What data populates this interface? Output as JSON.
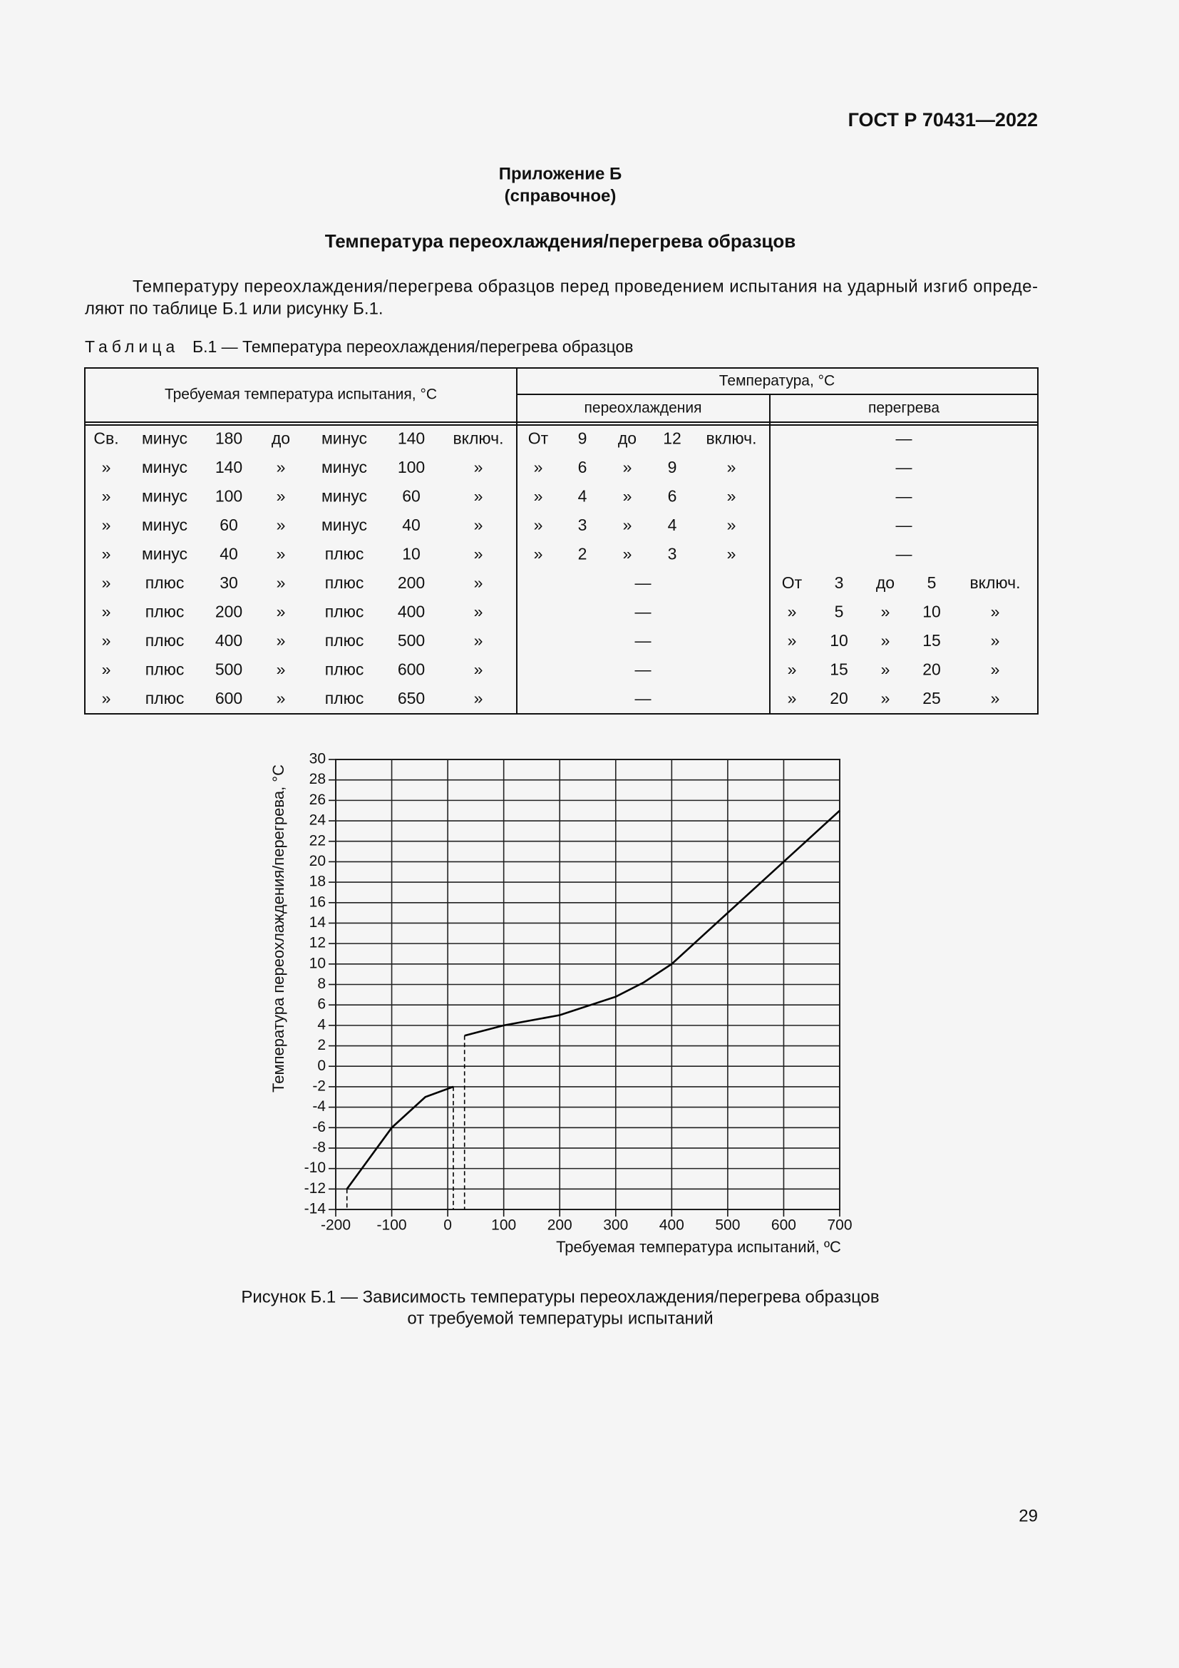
{
  "header": {
    "code": "ГОСТ Р 70431—2022"
  },
  "appendix": {
    "title": "Приложение Б",
    "subtitle": "(справочное)"
  },
  "section_title": "Температура переохлаждения/перегрева образцов",
  "paragraph": [
    "Температуру переохлаждения/перегрева образцов перед проведением испытания на ударный изгиб опреде-",
    "ляют по таблице Б.1 или рисунку Б.1."
  ],
  "table": {
    "caption_label": "Таблица",
    "caption": "Б.1 — Температура переохлаждения/перегрева образцов",
    "header": {
      "required": "Требуемая температура испытания, °С",
      "temperature": "Температура, °С",
      "subcooling": "переохлаждения",
      "overheating": "перегрева"
    },
    "rows": [
      {
        "req": [
          "Св.",
          "минус",
          "180",
          "до",
          "минус",
          "140",
          "включ."
        ],
        "sub": [
          "От",
          "9",
          "до",
          "12",
          "включ."
        ],
        "over": [
          "—"
        ]
      },
      {
        "req": [
          "»",
          "минус",
          "140",
          "»",
          "минус",
          "100",
          "»"
        ],
        "sub": [
          "»",
          "6",
          "»",
          "9",
          "»"
        ],
        "over": [
          "—"
        ]
      },
      {
        "req": [
          "»",
          "минус",
          "100",
          "»",
          "минус",
          "60",
          "»"
        ],
        "sub": [
          "»",
          "4",
          "»",
          "6",
          "»"
        ],
        "over": [
          "—"
        ]
      },
      {
        "req": [
          "»",
          "минус",
          "60",
          "»",
          "минус",
          "40",
          "»"
        ],
        "sub": [
          "»",
          "3",
          "»",
          "4",
          "»"
        ],
        "over": [
          "—"
        ]
      },
      {
        "req": [
          "»",
          "минус",
          "40",
          "»",
          "плюс",
          "10",
          "»"
        ],
        "sub": [
          "»",
          "2",
          "»",
          "3",
          "»"
        ],
        "over": [
          "—"
        ]
      },
      {
        "req": [
          "»",
          "плюс",
          "30",
          "»",
          "плюс",
          "200",
          "»"
        ],
        "sub": [
          "—"
        ],
        "over": [
          "От",
          "3",
          "до",
          "5",
          "включ."
        ]
      },
      {
        "req": [
          "»",
          "плюс",
          "200",
          "»",
          "плюс",
          "400",
          "»"
        ],
        "sub": [
          "—"
        ],
        "over": [
          "»",
          "5",
          "»",
          "10",
          "»"
        ]
      },
      {
        "req": [
          "»",
          "плюс",
          "400",
          "»",
          "плюс",
          "500",
          "»"
        ],
        "sub": [
          "—"
        ],
        "over": [
          "»",
          "10",
          "»",
          "15",
          "»"
        ]
      },
      {
        "req": [
          "»",
          "плюс",
          "500",
          "»",
          "плюс",
          "600",
          "»"
        ],
        "sub": [
          "—"
        ],
        "over": [
          "»",
          "15",
          "»",
          "20",
          "»"
        ]
      },
      {
        "req": [
          "»",
          "плюс",
          "600",
          "»",
          "плюс",
          "650",
          "»"
        ],
        "sub": [
          "—"
        ],
        "over": [
          "»",
          "20",
          "»",
          "25",
          "»"
        ]
      }
    ]
  },
  "chart_data": {
    "type": "line",
    "x_label": "Требуемая температура испытаний, ºС",
    "y_label": "Температура переохлаждения/перегрева, °С",
    "xlim": [
      -200,
      700
    ],
    "ylim": [
      -14,
      30
    ],
    "xticks": [
      -200,
      -100,
      0,
      100,
      200,
      300,
      400,
      500,
      600,
      700
    ],
    "yticks": [
      -14,
      -12,
      -10,
      -8,
      -6,
      -4,
      -2,
      0,
      2,
      4,
      6,
      8,
      10,
      12,
      14,
      16,
      18,
      20,
      22,
      24,
      26,
      28,
      30
    ],
    "grid": true,
    "drop_lines": true,
    "series": [
      {
        "color": "#000000",
        "x": [
          -180,
          -100,
          -40,
          10
        ],
        "values": [
          -12,
          -6,
          -3,
          -2
        ]
      },
      {
        "color": "#000000",
        "x": [
          30,
          100,
          200,
          300,
          350,
          400,
          500,
          600,
          700
        ],
        "values": [
          3,
          4,
          5,
          6.8,
          8.2,
          10,
          15,
          20,
          25
        ]
      }
    ]
  },
  "figure_caption": [
    "Рисунок Б.1 — Зависимость температуры переохлаждения/перегрева образцов",
    "от требуемой температуры испытаний"
  ],
  "page_number": "29"
}
